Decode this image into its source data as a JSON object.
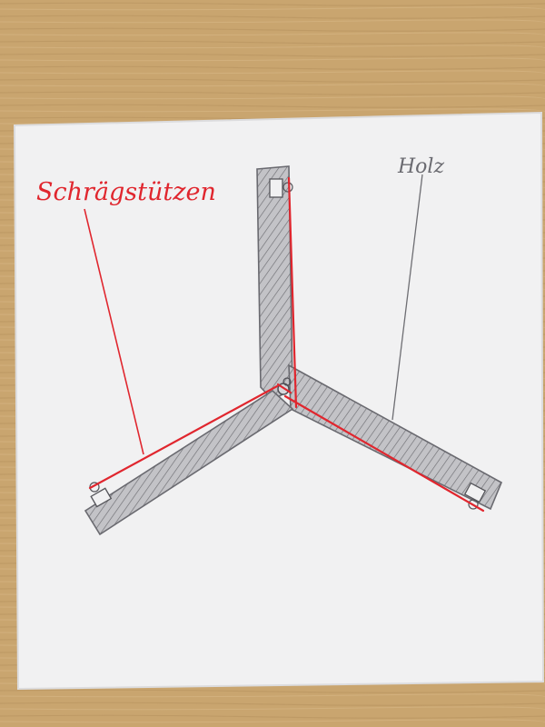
{
  "labels": {
    "left_annotation": "Schrägstützen",
    "right_annotation": "Holz"
  },
  "colors": {
    "desk": "#c9a56f",
    "paper": "#f1f1f2",
    "pencil": "#6e6e73",
    "wood_fill": "#bdbdc2",
    "red_ink": "#e0262e"
  }
}
